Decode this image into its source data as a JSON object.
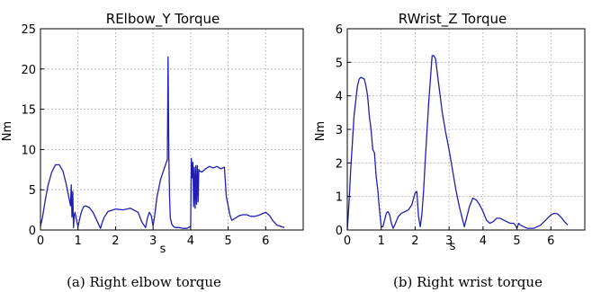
{
  "chart_data": [
    {
      "type": "line",
      "title": "RElbow_Y Torque",
      "xlabel": "s",
      "ylabel": "Nm",
      "xlim": [
        0,
        7
      ],
      "ylim": [
        0,
        25
      ],
      "xticks": [
        0,
        1,
        2,
        3,
        4,
        5,
        6
      ],
      "yticks": [
        0,
        5,
        10,
        15,
        20,
        25
      ],
      "grid": true,
      "caption": "(a) Right elbow torque",
      "color": "#1f1fb4",
      "series": [
        {
          "x": [
            0,
            0.05,
            0.12,
            0.2,
            0.3,
            0.4,
            0.5,
            0.6,
            0.68,
            0.75,
            0.8,
            0.82,
            0.84,
            0.86,
            0.88,
            0.9,
            0.92,
            0.95,
            1.0,
            1.05,
            1.1,
            1.15,
            1.2,
            1.3,
            1.4,
            1.5,
            1.6,
            1.65,
            1.7,
            1.8,
            2.0,
            2.2,
            2.4,
            2.6,
            2.7,
            2.8,
            2.85,
            2.9,
            2.95,
            3.0,
            3.05,
            3.1,
            3.2,
            3.3,
            3.36,
            3.38,
            3.4,
            3.42,
            3.44,
            3.46,
            3.5,
            3.55,
            3.6,
            3.7,
            3.8,
            3.9,
            3.95,
            4.0,
            4.02,
            4.04,
            4.06,
            4.08,
            4.1,
            4.12,
            4.14,
            4.16,
            4.18,
            4.2,
            4.22,
            4.25,
            4.3,
            4.4,
            4.5,
            4.6,
            4.7,
            4.8,
            4.9,
            4.92,
            4.95,
            5.0,
            5.05,
            5.1,
            5.2,
            5.3,
            5.4,
            5.5,
            5.6,
            5.7,
            5.8,
            5.9,
            6.0,
            6.1,
            6.2,
            6.3,
            6.5
          ],
          "y": [
            0.5,
            1.5,
            3.5,
            5.5,
            7.2,
            8.1,
            8.1,
            7.3,
            5.8,
            4.2,
            3.0,
            5.6,
            1.6,
            4.8,
            0.3,
            1.8,
            2.2,
            1.5,
            0.4,
            1.5,
            2.4,
            2.9,
            3.0,
            2.8,
            2.2,
            1.2,
            0.2,
            1.0,
            1.6,
            2.3,
            2.6,
            2.5,
            2.7,
            2.2,
            1.0,
            0.3,
            1.5,
            2.2,
            1.8,
            0.5,
            2.0,
            4.0,
            6.3,
            7.7,
            8.5,
            8.7,
            21.5,
            9.0,
            4.0,
            1.5,
            0.7,
            0.4,
            0.3,
            0.3,
            0.2,
            0.2,
            0.3,
            0.5,
            8.9,
            6.5,
            8.4,
            2.9,
            7.8,
            2.7,
            8.0,
            3.2,
            8.0,
            3.5,
            7.5,
            7.3,
            7.2,
            7.6,
            7.9,
            7.7,
            7.9,
            7.6,
            7.8,
            6.5,
            4.2,
            3.0,
            1.8,
            1.2,
            1.5,
            1.8,
            1.9,
            1.9,
            1.7,
            1.7,
            1.8,
            2.0,
            2.2,
            1.8,
            1.1,
            0.6,
            0.3
          ]
        }
      ]
    },
    {
      "type": "line",
      "title": "RWrist_Z Torque",
      "xlabel": "s",
      "ylabel": "Nm",
      "xlim": [
        0,
        7
      ],
      "ylim": [
        0,
        6
      ],
      "xticks": [
        0,
        1,
        2,
        3,
        4,
        5,
        6
      ],
      "yticks": [
        0,
        1,
        2,
        3,
        4,
        5,
        6
      ],
      "grid": true,
      "caption": "(b) Right wrist torque",
      "color": "#1f1fb4",
      "series": [
        {
          "x": [
            0,
            0.05,
            0.1,
            0.2,
            0.3,
            0.35,
            0.4,
            0.5,
            0.55,
            0.6,
            0.65,
            0.7,
            0.75,
            0.8,
            0.85,
            0.9,
            0.95,
            1.0,
            1.05,
            1.1,
            1.15,
            1.2,
            1.25,
            1.3,
            1.35,
            1.4,
            1.5,
            1.6,
            1.7,
            1.8,
            1.9,
            2.0,
            2.05,
            2.1,
            2.15,
            2.2,
            2.25,
            2.3,
            2.4,
            2.5,
            2.55,
            2.6,
            2.7,
            2.8,
            2.9,
            3.0,
            3.1,
            3.2,
            3.3,
            3.4,
            3.45,
            3.5,
            3.6,
            3.7,
            3.8,
            3.9,
            4.0,
            4.1,
            4.2,
            4.3,
            4.4,
            4.5,
            4.6,
            4.7,
            4.8,
            4.9,
            4.95,
            5.0,
            5.05,
            5.1,
            5.2,
            5.3,
            5.4,
            5.5,
            5.6,
            5.7,
            5.8,
            5.9,
            6.0,
            6.1,
            6.2,
            6.3,
            6.4,
            6.5
          ],
          "y": [
            0.0,
            0.8,
            1.8,
            3.4,
            4.3,
            4.5,
            4.55,
            4.5,
            4.3,
            4.0,
            3.4,
            3.0,
            2.4,
            2.3,
            1.6,
            1.2,
            0.6,
            0.1,
            0.1,
            0.3,
            0.5,
            0.55,
            0.45,
            0.2,
            0.05,
            0.15,
            0.4,
            0.5,
            0.55,
            0.6,
            0.75,
            1.1,
            1.15,
            0.4,
            0.1,
            0.5,
            1.2,
            2.1,
            3.8,
            5.2,
            5.2,
            5.1,
            4.3,
            3.5,
            2.9,
            2.4,
            1.8,
            1.2,
            0.7,
            0.3,
            0.1,
            0.3,
            0.7,
            0.95,
            0.9,
            0.75,
            0.55,
            0.3,
            0.2,
            0.25,
            0.35,
            0.35,
            0.3,
            0.25,
            0.2,
            0.2,
            0.15,
            0.05,
            0.2,
            0.15,
            0.1,
            0.05,
            0.05,
            0.05,
            0.1,
            0.15,
            0.25,
            0.35,
            0.45,
            0.5,
            0.48,
            0.38,
            0.25,
            0.15
          ]
        }
      ]
    }
  ]
}
